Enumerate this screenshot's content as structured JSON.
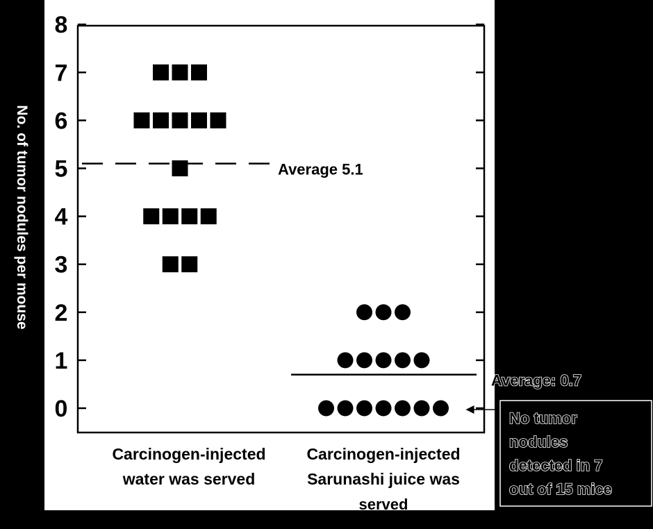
{
  "chart_data": {
    "type": "scatter",
    "title": "",
    "xlabel": "",
    "ylabel": "No. of tumor nodules per mouse",
    "ylim": [
      0,
      8
    ],
    "yticks": [
      "0",
      "1",
      "2",
      "3",
      "4",
      "5",
      "6",
      "7",
      "8"
    ],
    "grid": false,
    "categories": [
      "Carcinogen-injected water was served",
      "Carcinogen-injected Sarunashi juice was served"
    ],
    "series": [
      {
        "category": "Carcinogen-injected water was served",
        "marker": "square",
        "counts_by_value": [
          {
            "y": 7,
            "count": 3
          },
          {
            "y": 6,
            "count": 5
          },
          {
            "y": 5,
            "count": 1
          },
          {
            "y": 4,
            "count": 4
          },
          {
            "y": 3,
            "count": 2
          }
        ],
        "average": 5.1,
        "average_label": "Average 5.1",
        "average_line": "dashed"
      },
      {
        "category": "Carcinogen-injected Sarunashi juice was served",
        "marker": "circle",
        "counts_by_value": [
          {
            "y": 2,
            "count": 3
          },
          {
            "y": 1,
            "count": 5
          },
          {
            "y": 0,
            "count": 7
          }
        ],
        "average": 0.7,
        "average_label": "Average: 0.7",
        "average_line": "solid"
      }
    ],
    "annotations": [
      {
        "text_lines": [
          "No tumor",
          "nodules",
          "detected in 7",
          "out of 15 mice"
        ],
        "points_to": {
          "category": 1,
          "y": 0
        }
      }
    ],
    "category_label_lines": [
      [
        "Carcinogen-injected",
        "water was served"
      ],
      [
        "Carcinogen-injected",
        "Sarunashi juice was",
        "served"
      ]
    ]
  }
}
